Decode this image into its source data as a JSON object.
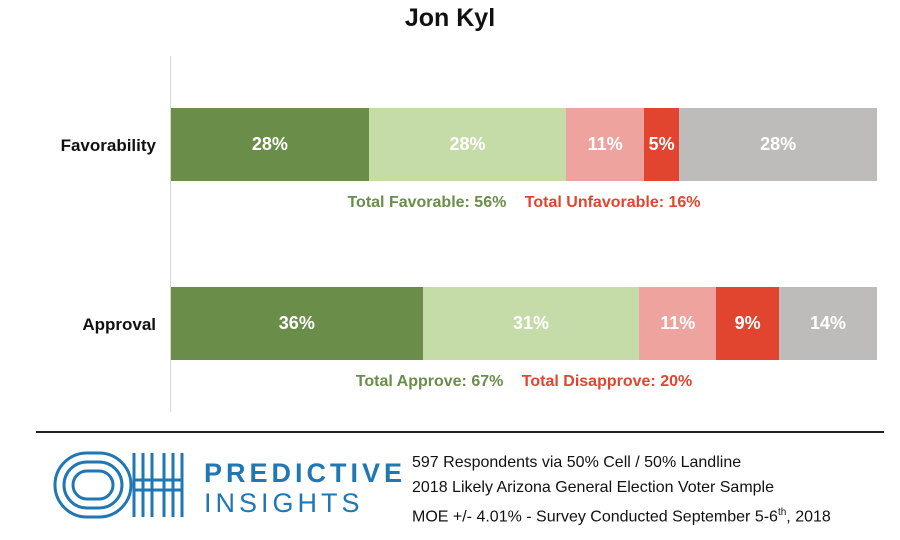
{
  "chart_data": {
    "type": "bar",
    "orientation": "horizontal",
    "stacked": true,
    "normalized": true,
    "title": "Jon Kyl",
    "categories": [
      "Favorability",
      "Approval"
    ],
    "series": [
      {
        "color": "#6a8d4a",
        "values": [
          28,
          36
        ]
      },
      {
        "color": "#c5dca8",
        "values": [
          28,
          31
        ]
      },
      {
        "color": "#eea39f",
        "values": [
          11,
          11
        ]
      },
      {
        "color": "#e2452f",
        "values": [
          5,
          9
        ]
      },
      {
        "color": "#bdbcbb",
        "values": [
          28,
          14
        ]
      }
    ],
    "data_labels": [
      [
        "28%",
        "28%",
        "11%",
        "5%",
        "28%"
      ],
      [
        "36%",
        "31%",
        "11%",
        "9%",
        "14%"
      ]
    ],
    "totals": [
      {
        "positive": "Total Favorable: 56%",
        "negative": "Total Unfavorable: 16%"
      },
      {
        "positive": "Total Approve: 67%",
        "negative": "Total Disapprove: 20%"
      }
    ],
    "grid": false,
    "legend": "none"
  },
  "footer": {
    "brand_line1": "PREDICTIVE",
    "brand_line2": "INSIGHTS",
    "brand_color": "#1f77b4",
    "note1": "597 Respondents via 50% Cell / 50% Landline",
    "note2": "2018 Likely Arizona General Election Voter Sample",
    "note3_main": "MOE +/- 4.01% - Survey Conducted September 5-6",
    "note3_sup": "th",
    "note3_end": ", 2018"
  }
}
